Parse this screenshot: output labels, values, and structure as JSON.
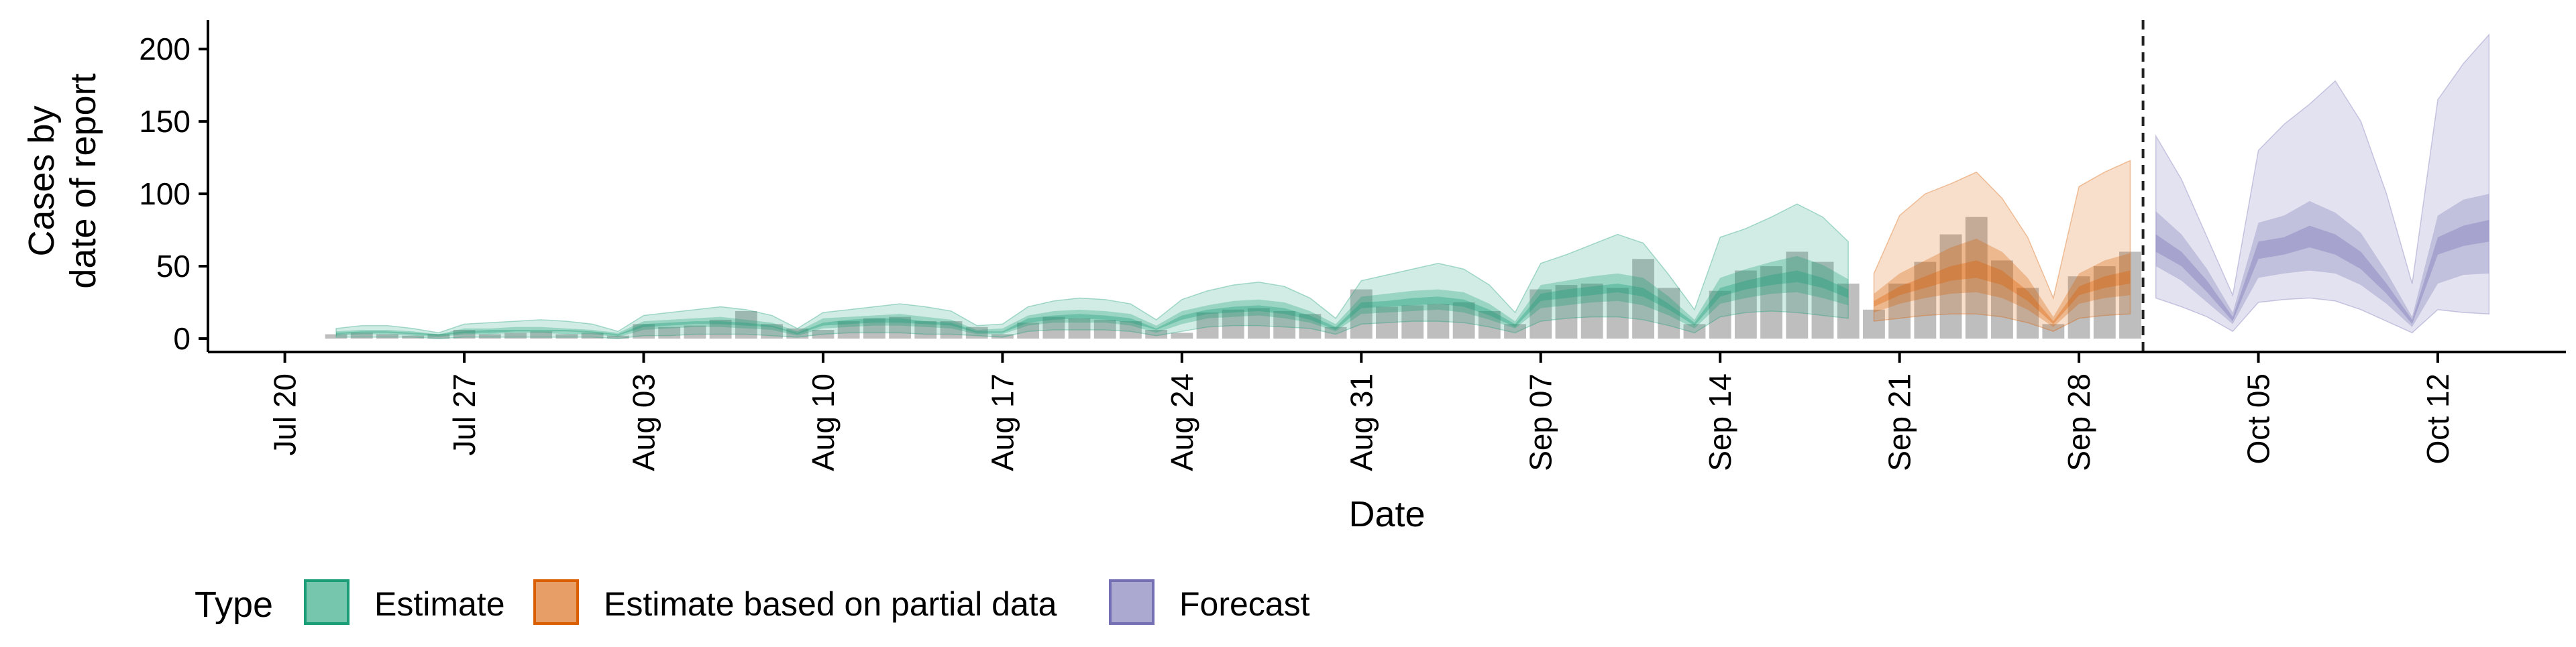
{
  "chart_data": {
    "type": "bar",
    "xlabel": "Date",
    "ylabel_lines": [
      "Cases by",
      "date of report"
    ],
    "ylim": [
      0,
      220
    ],
    "yticks": [
      0,
      50,
      100,
      150,
      200
    ],
    "xlim": [
      "2020-07-17",
      "2020-10-17"
    ],
    "xticks": [
      {
        "date": "2020-07-20",
        "label": "Jul 20"
      },
      {
        "date": "2020-07-27",
        "label": "Jul 27"
      },
      {
        "date": "2020-08-03",
        "label": "Aug 03"
      },
      {
        "date": "2020-08-10",
        "label": "Aug 10"
      },
      {
        "date": "2020-08-17",
        "label": "Aug 17"
      },
      {
        "date": "2020-08-24",
        "label": "Aug 24"
      },
      {
        "date": "2020-08-31",
        "label": "Aug 31"
      },
      {
        "date": "2020-09-07",
        "label": "Sep 07"
      },
      {
        "date": "2020-09-14",
        "label": "Sep 14"
      },
      {
        "date": "2020-09-21",
        "label": "Sep 21"
      },
      {
        "date": "2020-09-28",
        "label": "Sep 28"
      },
      {
        "date": "2020-10-05",
        "label": "Oct 05"
      },
      {
        "date": "2020-10-12",
        "label": "Oct 12"
      }
    ],
    "grid": false,
    "legend_position": "bottom-left",
    "legend_title": "Type",
    "colors": {
      "estimate": "#1b9e77",
      "partial": "#d95f02",
      "forecast": "#7570b3",
      "bars": "#b3b3b3",
      "axis": "#000000"
    },
    "vline_date": "2020-09-30",
    "bars": {
      "dates": [
        "2020-07-22",
        "2020-07-23",
        "2020-07-24",
        "2020-07-25",
        "2020-07-26",
        "2020-07-27",
        "2020-07-28",
        "2020-07-29",
        "2020-07-30",
        "2020-07-31",
        "2020-08-01",
        "2020-08-02",
        "2020-08-03",
        "2020-08-04",
        "2020-08-05",
        "2020-08-06",
        "2020-08-07",
        "2020-08-08",
        "2020-08-09",
        "2020-08-10",
        "2020-08-11",
        "2020-08-12",
        "2020-08-13",
        "2020-08-14",
        "2020-08-15",
        "2020-08-16",
        "2020-08-17",
        "2020-08-18",
        "2020-08-19",
        "2020-08-20",
        "2020-08-21",
        "2020-08-22",
        "2020-08-23",
        "2020-08-24",
        "2020-08-25",
        "2020-08-26",
        "2020-08-27",
        "2020-08-28",
        "2020-08-29",
        "2020-08-30",
        "2020-08-31",
        "2020-09-01",
        "2020-09-02",
        "2020-09-03",
        "2020-09-04",
        "2020-09-05",
        "2020-09-06",
        "2020-09-07",
        "2020-09-08",
        "2020-09-09",
        "2020-09-10",
        "2020-09-11",
        "2020-09-12",
        "2020-09-13",
        "2020-09-14",
        "2020-09-15",
        "2020-09-16",
        "2020-09-17",
        "2020-09-18",
        "2020-09-19",
        "2020-09-20",
        "2020-09-21",
        "2020-09-22",
        "2020-09-23",
        "2020-09-24",
        "2020-09-25",
        "2020-09-26",
        "2020-09-27",
        "2020-09-28",
        "2020-09-29",
        "2020-09-30"
      ],
      "values": [
        3,
        4,
        3,
        2,
        3,
        6,
        3,
        4,
        5,
        3,
        4,
        2,
        10,
        8,
        9,
        13,
        19,
        10,
        7,
        6,
        12,
        14,
        15,
        12,
        12,
        8,
        3,
        11,
        15,
        14,
        13,
        12,
        6,
        4,
        18,
        20,
        21,
        19,
        17,
        8,
        34,
        22,
        23,
        24,
        25,
        19,
        10,
        34,
        37,
        38,
        35,
        55,
        35,
        10,
        33,
        47,
        50,
        60,
        53,
        38,
        20,
        38,
        53,
        72,
        84,
        54,
        35,
        10,
        43,
        50,
        60
      ]
    },
    "series": [
      {
        "name": "Estimate",
        "key": "estimate",
        "dates": [
          "2020-07-22",
          "2020-07-23",
          "2020-07-24",
          "2020-07-25",
          "2020-07-26",
          "2020-07-27",
          "2020-07-28",
          "2020-07-29",
          "2020-07-30",
          "2020-07-31",
          "2020-08-01",
          "2020-08-02",
          "2020-08-03",
          "2020-08-04",
          "2020-08-05",
          "2020-08-06",
          "2020-08-07",
          "2020-08-08",
          "2020-08-09",
          "2020-08-10",
          "2020-08-11",
          "2020-08-12",
          "2020-08-13",
          "2020-08-14",
          "2020-08-15",
          "2020-08-16",
          "2020-08-17",
          "2020-08-18",
          "2020-08-19",
          "2020-08-20",
          "2020-08-21",
          "2020-08-22",
          "2020-08-23",
          "2020-08-24",
          "2020-08-25",
          "2020-08-26",
          "2020-08-27",
          "2020-08-28",
          "2020-08-29",
          "2020-08-30",
          "2020-08-31",
          "2020-09-01",
          "2020-09-02",
          "2020-09-03",
          "2020-09-04",
          "2020-09-05",
          "2020-09-06",
          "2020-09-07",
          "2020-09-08",
          "2020-09-09",
          "2020-09-10",
          "2020-09-11",
          "2020-09-12",
          "2020-09-13",
          "2020-09-14",
          "2020-09-15",
          "2020-09-16",
          "2020-09-17",
          "2020-09-18",
          "2020-09-19"
        ],
        "lo90": [
          1,
          1,
          1,
          1,
          0,
          1,
          1,
          1,
          1,
          1,
          1,
          0,
          2,
          2,
          3,
          3,
          3,
          2,
          1,
          3,
          4,
          4,
          4,
          3,
          3,
          2,
          1,
          5,
          6,
          6,
          6,
          5,
          2,
          5,
          8,
          9,
          9,
          8,
          7,
          3,
          10,
          11,
          12,
          12,
          11,
          8,
          4,
          12,
          14,
          15,
          15,
          13,
          9,
          4,
          15,
          18,
          19,
          18,
          16,
          14
        ],
        "lo50": [
          2,
          3,
          3,
          2,
          1,
          3,
          3,
          4,
          4,
          3,
          3,
          1,
          6,
          7,
          8,
          8,
          7,
          6,
          2,
          7,
          8,
          9,
          9,
          8,
          7,
          3,
          3,
          9,
          11,
          11,
          11,
          9,
          4,
          10,
          14,
          15,
          16,
          14,
          11,
          5,
          17,
          18,
          19,
          20,
          18,
          13,
          7,
          21,
          23,
          25,
          26,
          23,
          16,
          7,
          24,
          28,
          31,
          32,
          28,
          23
        ],
        "lo20": [
          3,
          4,
          4,
          3,
          2,
          4,
          4,
          5,
          5,
          5,
          4,
          2,
          8,
          9,
          10,
          10,
          9,
          8,
          3,
          9,
          10,
          11,
          11,
          10,
          9,
          4,
          4,
          11,
          13,
          14,
          13,
          11,
          6,
          13,
          17,
          18,
          19,
          17,
          13,
          6,
          21,
          22,
          23,
          24,
          22,
          16,
          8,
          26,
          28,
          30,
          32,
          29,
          20,
          9,
          29,
          34,
          37,
          39,
          35,
          28
        ],
        "hi20": [
          4,
          5,
          5,
          4,
          3,
          5,
          6,
          6,
          6,
          6,
          5,
          3,
          10,
          11,
          12,
          12,
          11,
          9,
          4,
          11,
          13,
          14,
          14,
          12,
          11,
          5,
          5,
          14,
          16,
          17,
          16,
          14,
          7,
          16,
          20,
          22,
          23,
          21,
          16,
          8,
          25,
          26,
          28,
          29,
          27,
          20,
          10,
          31,
          34,
          36,
          38,
          35,
          24,
          11,
          35,
          40,
          44,
          47,
          42,
          34
        ],
        "hi50": [
          5,
          6,
          6,
          5,
          3,
          7,
          7,
          8,
          8,
          7,
          6,
          4,
          12,
          13,
          14,
          15,
          13,
          11,
          5,
          14,
          15,
          16,
          17,
          15,
          13,
          6,
          7,
          16,
          19,
          20,
          19,
          17,
          9,
          19,
          23,
          26,
          27,
          25,
          19,
          10,
          29,
          31,
          33,
          34,
          32,
          24,
          12,
          37,
          40,
          43,
          45,
          42,
          29,
          13,
          42,
          48,
          53,
          57,
          51,
          41
        ],
        "hi90": [
          7,
          9,
          9,
          7,
          4,
          10,
          11,
          12,
          13,
          12,
          10,
          5,
          16,
          18,
          20,
          22,
          20,
          16,
          7,
          18,
          20,
          22,
          24,
          22,
          19,
          9,
          10,
          22,
          26,
          28,
          27,
          24,
          13,
          27,
          33,
          37,
          39,
          36,
          28,
          14,
          40,
          44,
          48,
          52,
          48,
          37,
          18,
          52,
          58,
          65,
          72,
          66,
          44,
          20,
          70,
          76,
          84,
          93,
          84,
          67
        ]
      },
      {
        "name": "Estimate based on partial data",
        "key": "partial",
        "dates": [
          "2020-09-20",
          "2020-09-21",
          "2020-09-22",
          "2020-09-23",
          "2020-09-24",
          "2020-09-25",
          "2020-09-26",
          "2020-09-27",
          "2020-09-28",
          "2020-09-29",
          "2020-09-30"
        ],
        "lo90": [
          12,
          14,
          16,
          17,
          17,
          15,
          11,
          5,
          14,
          16,
          17
        ],
        "lo50": [
          18,
          24,
          28,
          31,
          32,
          28,
          20,
          8,
          24,
          28,
          30
        ],
        "lo20": [
          22,
          30,
          35,
          40,
          42,
          37,
          26,
          10,
          30,
          35,
          38
        ],
        "hi20": [
          26,
          36,
          43,
          50,
          54,
          47,
          33,
          12,
          36,
          43,
          47
        ],
        "hi50": [
          31,
          45,
          54,
          63,
          69,
          60,
          42,
          15,
          45,
          54,
          59
        ],
        "hi90": [
          45,
          85,
          100,
          107,
          115,
          97,
          70,
          28,
          105,
          115,
          123
        ]
      },
      {
        "name": "Forecast",
        "key": "forecast",
        "dates": [
          "2020-10-01",
          "2020-10-02",
          "2020-10-03",
          "2020-10-04",
          "2020-10-05",
          "2020-10-06",
          "2020-10-07",
          "2020-10-08",
          "2020-10-09",
          "2020-10-10",
          "2020-10-11",
          "2020-10-12",
          "2020-10-13",
          "2020-10-14"
        ],
        "lo90": [
          28,
          22,
          15,
          5,
          25,
          27,
          28,
          26,
          20,
          12,
          4,
          20,
          18,
          17
        ],
        "lo50": [
          50,
          40,
          25,
          10,
          42,
          45,
          47,
          45,
          37,
          24,
          8,
          38,
          44,
          45
        ],
        "lo20": [
          60,
          50,
          32,
          12,
          55,
          58,
          63,
          58,
          48,
          31,
          10,
          58,
          64,
          67
        ],
        "hi20": [
          72,
          60,
          40,
          15,
          67,
          70,
          78,
          72,
          60,
          38,
          13,
          70,
          78,
          82
        ],
        "hi50": [
          88,
          72,
          48,
          18,
          80,
          85,
          95,
          87,
          73,
          46,
          15,
          85,
          96,
          100
        ],
        "hi90": [
          140,
          110,
          70,
          30,
          130,
          148,
          162,
          178,
          150,
          100,
          38,
          165,
          190,
          210
        ]
      }
    ]
  }
}
